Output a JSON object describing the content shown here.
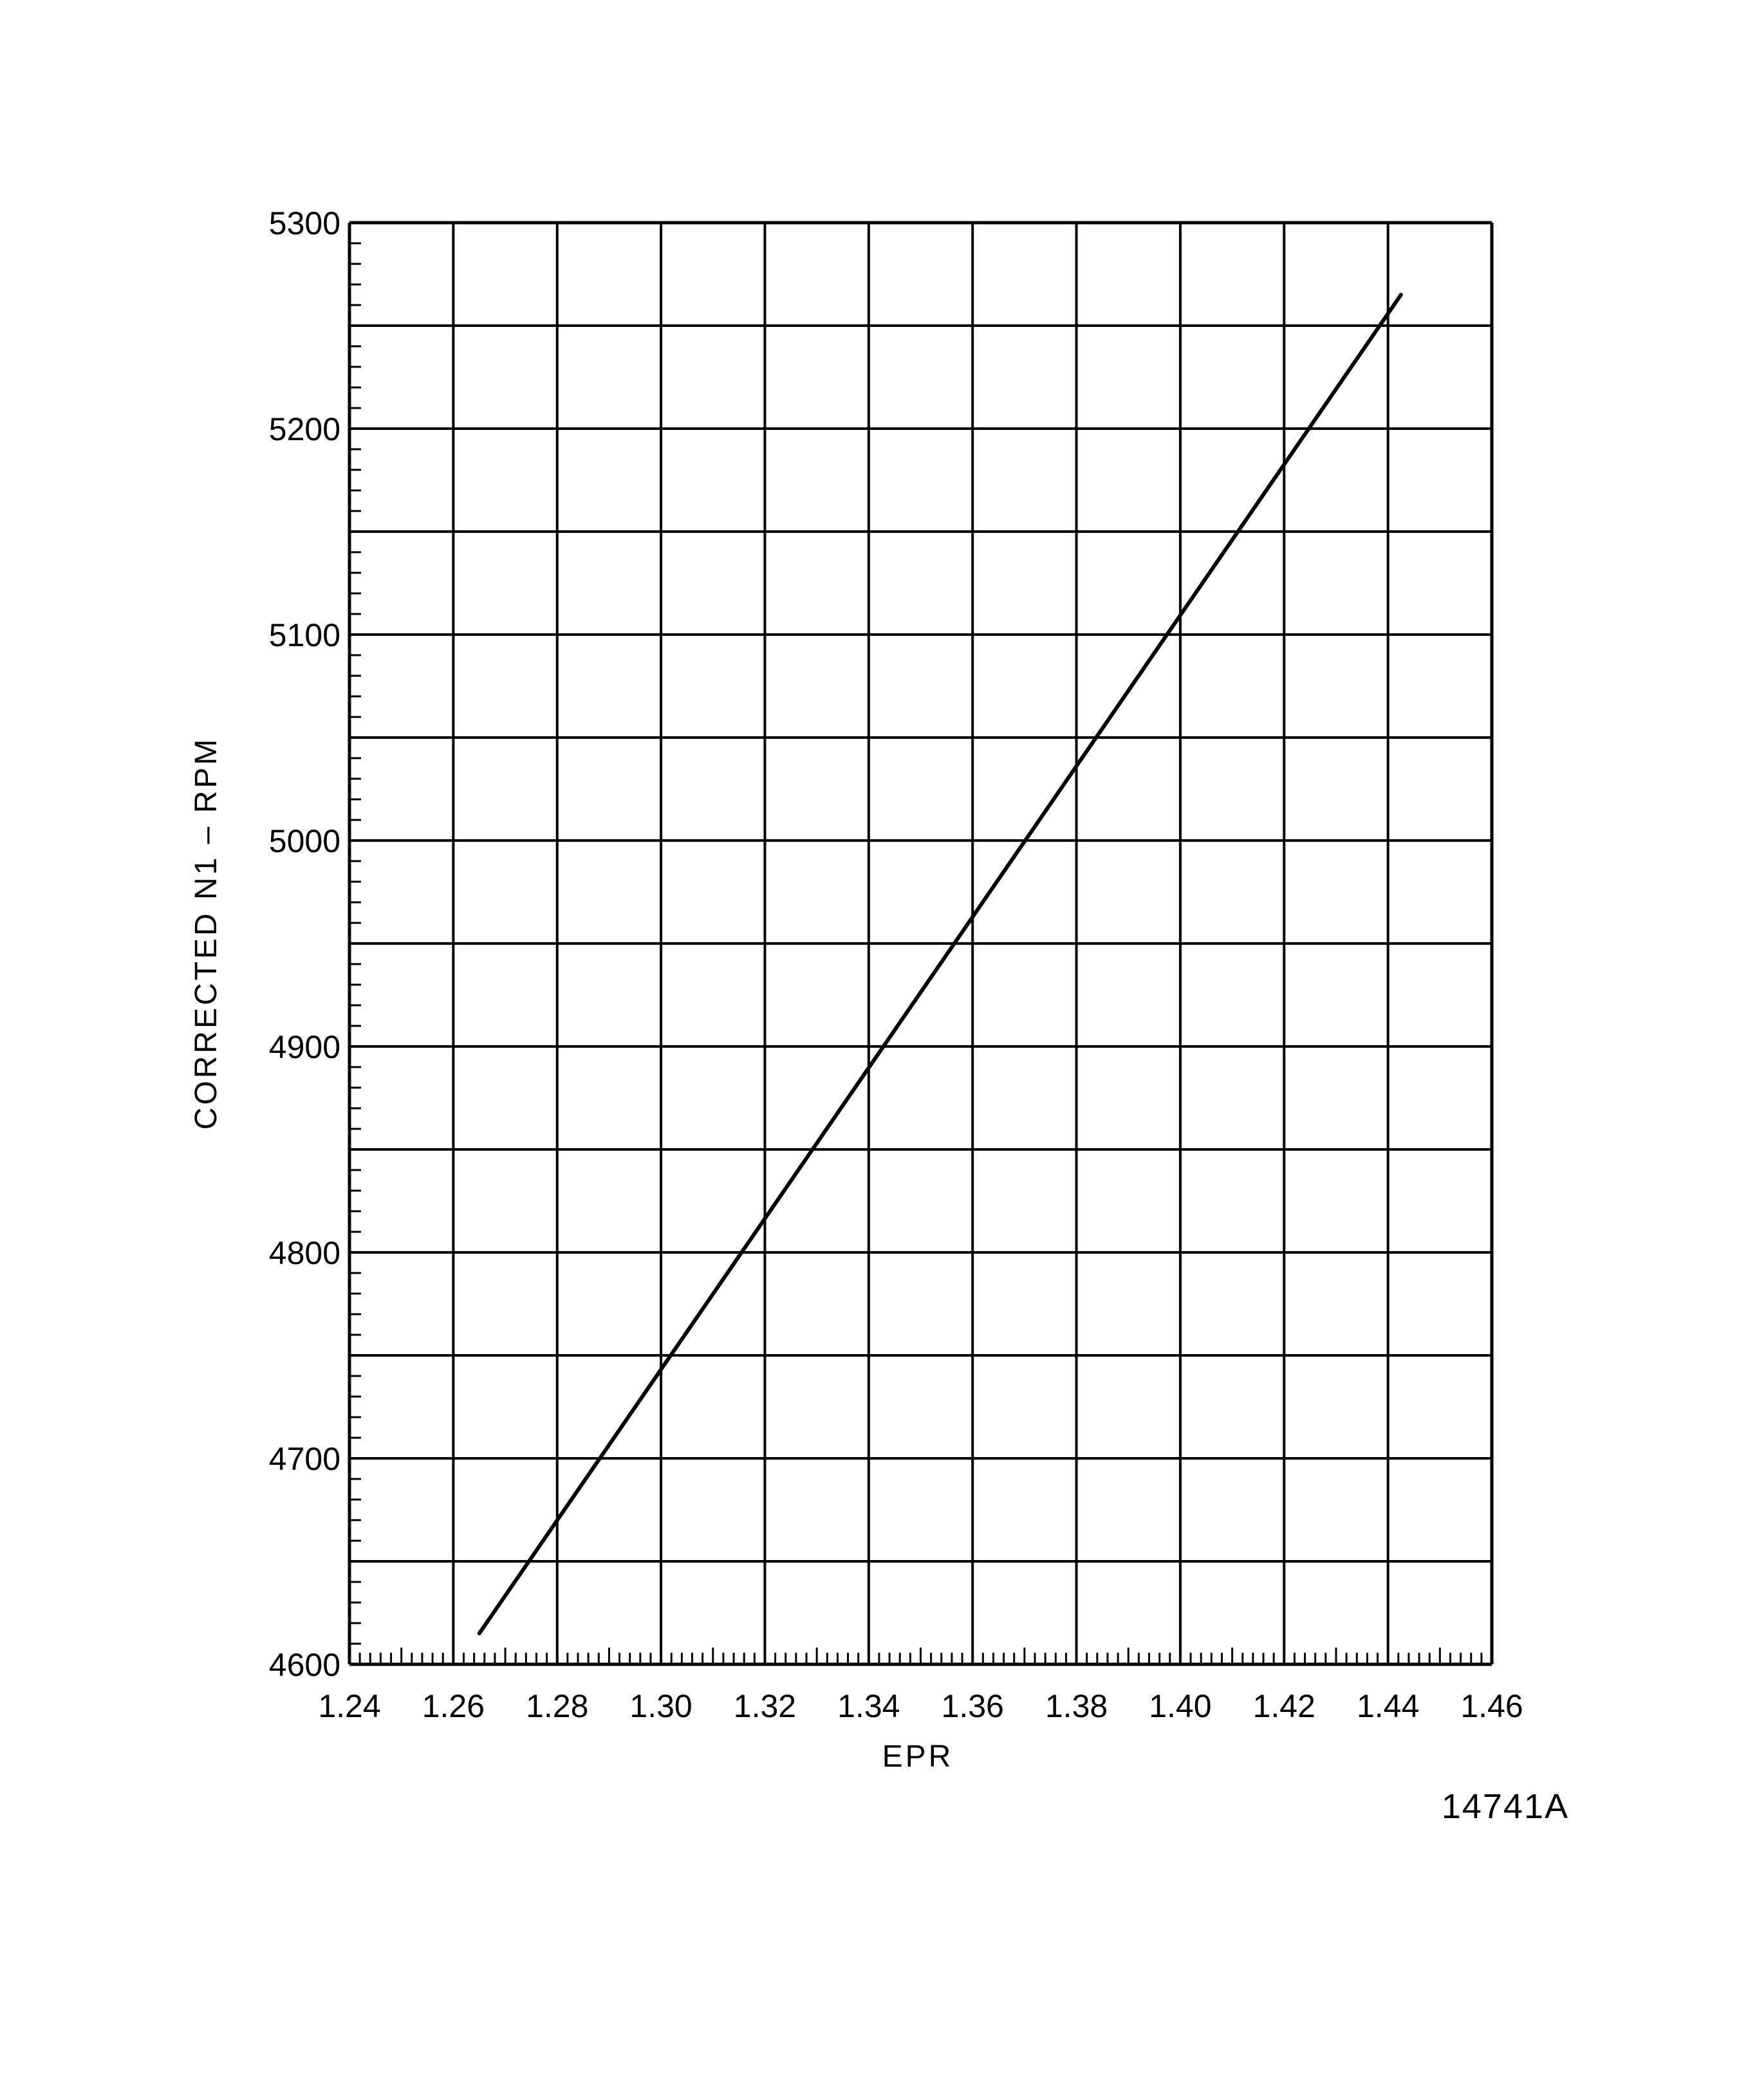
{
  "chart_data": {
    "type": "line",
    "title": "",
    "xlabel": "EPR",
    "ylabel": "CORRECTED N1 – RPM",
    "xlim": [
      1.24,
      1.46
    ],
    "ylim": [
      4600,
      5300
    ],
    "x_ticks": [
      "1.24",
      "1.26",
      "1.28",
      "1.30",
      "1.32",
      "1.34",
      "1.36",
      "1.38",
      "1.40",
      "1.42",
      "1.44",
      "1.46"
    ],
    "y_ticks": [
      "4600",
      "4700",
      "4800",
      "4900",
      "5000",
      "5100",
      "5200",
      "5300"
    ],
    "x_grid_step": 0.02,
    "x_minor_step": 0.002,
    "y_grid_step": 50,
    "y_minor_step": 10,
    "grid": true,
    "series": [
      {
        "x": [
          1.265,
          1.4425
        ],
        "y": [
          4615,
          5265
        ]
      }
    ]
  },
  "figure_id": "14741A",
  "colors": {
    "line": "#000000",
    "grid": "#000000",
    "background": "#ffffff"
  }
}
